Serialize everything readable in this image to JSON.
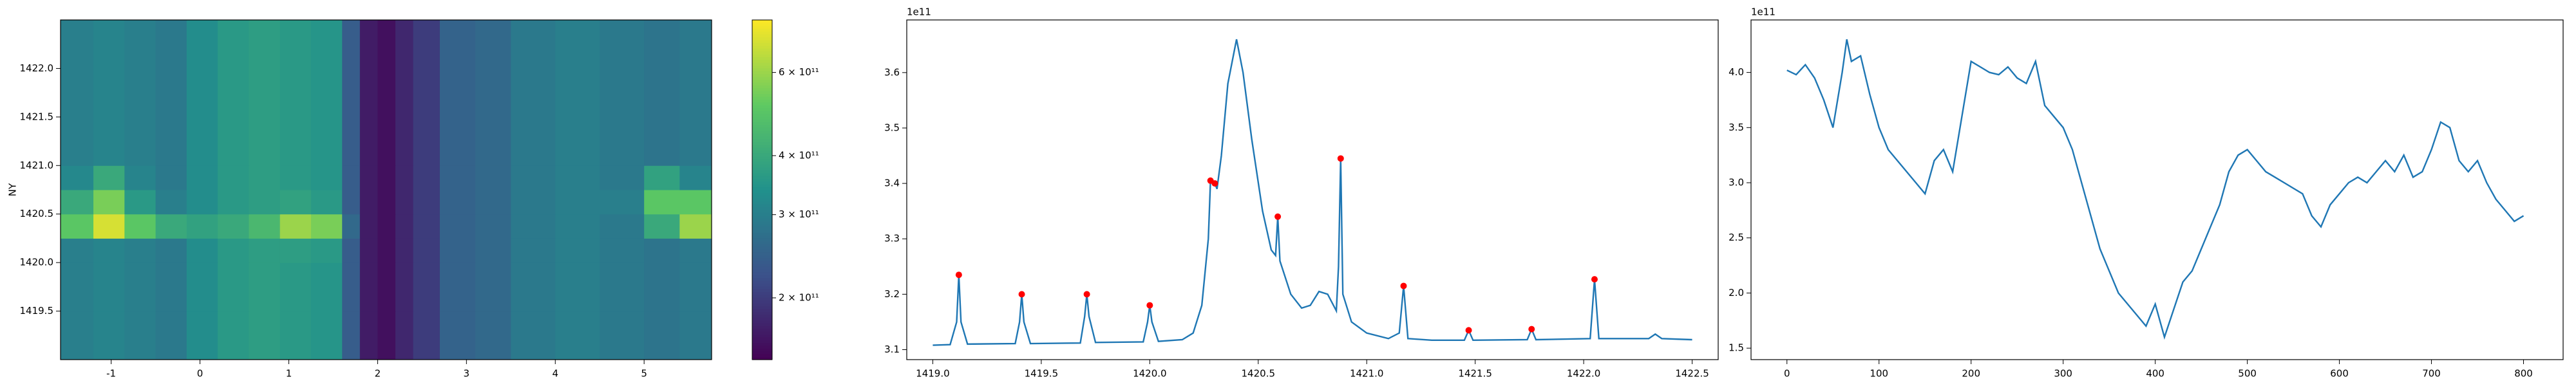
{
  "chart_data": [
    {
      "type": "heatmap",
      "ylabel": "NY",
      "colormap": "viridis",
      "xlim": [
        -1.57,
        5.76
      ],
      "ylim": [
        1419.0,
        1422.5
      ],
      "xticks": [
        -1,
        0,
        1,
        2,
        3,
        4,
        5
      ],
      "yticks": [
        1419.5,
        {
          "value": 1420,
          "label": "1420.0"
        },
        1420.5,
        {
          "value": 1421,
          "label": "1421.0"
        },
        1421.5,
        {
          "value": 1422,
          "label": "1422.0"
        }
      ],
      "x_edges": [
        -1.57,
        -1.2,
        -0.85,
        -0.5,
        -0.15,
        0.2,
        0.55,
        0.9,
        1.25,
        1.6,
        1.8,
        2.0,
        2.2,
        2.4,
        2.7,
        3.1,
        3.5,
        4.0,
        4.5,
        5.0,
        5.4,
        5.76
      ],
      "y_edges": [
        1419.0,
        1419.5,
        1420.0,
        1420.25,
        1420.5,
        1420.75,
        1421.0,
        1422.5
      ],
      "z": [
        [
          300000000000.0,
          310000000000.0,
          300000000000.0,
          290000000000.0,
          330000000000.0,
          360000000000.0,
          370000000000.0,
          360000000000.0,
          350000000000.0,
          240000000000.0,
          170000000000.0,
          160000000000.0,
          180000000000.0,
          200000000000.0,
          250000000000.0,
          260000000000.0,
          290000000000.0,
          300000000000.0,
          290000000000.0,
          280000000000.0,
          290000000000.0
        ],
        [
          300000000000.0,
          310000000000.0,
          300000000000.0,
          290000000000.0,
          330000000000.0,
          360000000000.0,
          370000000000.0,
          360000000000.0,
          350000000000.0,
          240000000000.0,
          170000000000.0,
          160000000000.0,
          180000000000.0,
          200000000000.0,
          250000000000.0,
          260000000000.0,
          290000000000.0,
          300000000000.0,
          290000000000.0,
          280000000000.0,
          290000000000.0
        ],
        [
          300000000000.0,
          310000000000.0,
          300000000000.0,
          290000000000.0,
          330000000000.0,
          360000000000.0,
          370000000000.0,
          370000000000.0,
          360000000000.0,
          240000000000.0,
          170000000000.0,
          160000000000.0,
          180000000000.0,
          200000000000.0,
          250000000000.0,
          260000000000.0,
          290000000000.0,
          300000000000.0,
          290000000000.0,
          280000000000.0,
          290000000000.0
        ],
        [
          500000000000.0,
          700000000000.0,
          500000000000.0,
          400000000000.0,
          380000000000.0,
          400000000000.0,
          450000000000.0,
          600000000000.0,
          550000000000.0,
          260000000000.0,
          170000000000.0,
          160000000000.0,
          180000000000.0,
          200000000000.0,
          250000000000.0,
          260000000000.0,
          290000000000.0,
          300000000000.0,
          290000000000.0,
          400000000000.0,
          600000000000.0
        ],
        [
          400000000000.0,
          550000000000.0,
          360000000000.0,
          300000000000.0,
          330000000000.0,
          360000000000.0,
          370000000000.0,
          380000000000.0,
          360000000000.0,
          240000000000.0,
          170000000000.0,
          160000000000.0,
          180000000000.0,
          200000000000.0,
          250000000000.0,
          260000000000.0,
          290000000000.0,
          300000000000.0,
          300000000000.0,
          500000000000.0,
          500000000000.0
        ],
        [
          320000000000.0,
          400000000000.0,
          310000000000.0,
          290000000000.0,
          330000000000.0,
          360000000000.0,
          370000000000.0,
          360000000000.0,
          350000000000.0,
          240000000000.0,
          170000000000.0,
          160000000000.0,
          180000000000.0,
          200000000000.0,
          250000000000.0,
          260000000000.0,
          290000000000.0,
          300000000000.0,
          290000000000.0,
          380000000000.0,
          310000000000.0
        ],
        [
          300000000000.0,
          310000000000.0,
          300000000000.0,
          290000000000.0,
          330000000000.0,
          360000000000.0,
          370000000000.0,
          360000000000.0,
          350000000000.0,
          240000000000.0,
          170000000000.0,
          160000000000.0,
          180000000000.0,
          200000000000.0,
          250000000000.0,
          260000000000.0,
          290000000000.0,
          300000000000.0,
          290000000000.0,
          280000000000.0,
          290000000000.0
        ]
      ],
      "colorbar": {
        "lim": [
          148000000000.0,
          775000000000.0
        ],
        "log": true,
        "ticks": [
          {
            "value": 200000000000.0,
            "label": "2 × 10¹¹"
          },
          {
            "value": 300000000000.0,
            "label": "3 × 10¹¹"
          },
          {
            "value": 400000000000.0,
            "label": "4 × 10¹¹"
          },
          {
            "value": 600000000000.0,
            "label": "6 × 10¹¹"
          }
        ]
      }
    },
    {
      "type": "line",
      "offset_text": "1e11",
      "xlim": [
        1418.88,
        1422.62
      ],
      "ylim": [
        3.082,
        3.695
      ],
      "xticks": [
        {
          "value": 1419,
          "label": "1419.0"
        },
        1419.5,
        {
          "value": 1420,
          "label": "1420.0"
        },
        1420.5,
        {
          "value": 1421,
          "label": "1421.0"
        },
        1421.5,
        {
          "value": 1422,
          "label": "1422.0"
        },
        1422.5
      ],
      "yticks": [
        3.1,
        3.2,
        3.3,
        3.4,
        3.5,
        3.6
      ],
      "series": [
        {
          "color": "#1f77b4",
          "x": [
            1419.0,
            1419.08,
            1419.11,
            1419.12,
            1419.13,
            1419.16,
            1419.38,
            1419.4,
            1419.41,
            1419.42,
            1419.45,
            1419.68,
            1419.7,
            1419.71,
            1419.72,
            1419.75,
            1419.97,
            1419.99,
            1420.0,
            1420.01,
            1420.04,
            1420.15,
            1420.2,
            1420.24,
            1420.27,
            1420.28,
            1420.3,
            1420.31,
            1420.33,
            1420.36,
            1420.4,
            1420.43,
            1420.47,
            1420.52,
            1420.56,
            1420.58,
            1420.59,
            1420.6,
            1420.65,
            1420.7,
            1420.74,
            1420.78,
            1420.82,
            1420.86,
            1420.87,
            1420.88,
            1420.89,
            1420.93,
            1421.0,
            1421.1,
            1421.15,
            1421.17,
            1421.19,
            1421.3,
            1421.45,
            1421.47,
            1421.49,
            1421.74,
            1421.76,
            1421.78,
            1422.03,
            1422.05,
            1422.07,
            1422.3,
            1422.33,
            1422.36,
            1422.5
          ],
          "values": [
            3.108,
            3.109,
            3.15,
            3.235,
            3.15,
            3.11,
            3.111,
            3.15,
            3.2,
            3.15,
            3.111,
            3.112,
            3.16,
            3.2,
            3.16,
            3.113,
            3.114,
            3.15,
            3.18,
            3.15,
            3.115,
            3.118,
            3.13,
            3.18,
            3.3,
            3.405,
            3.4,
            3.39,
            3.45,
            3.58,
            3.66,
            3.6,
            3.48,
            3.35,
            3.28,
            3.27,
            3.34,
            3.26,
            3.2,
            3.175,
            3.18,
            3.205,
            3.2,
            3.17,
            3.25,
            3.445,
            3.2,
            3.15,
            3.13,
            3.12,
            3.13,
            3.215,
            3.12,
            3.117,
            3.117,
            3.135,
            3.117,
            3.118,
            3.137,
            3.118,
            3.12,
            3.227,
            3.12,
            3.12,
            3.128,
            3.12,
            3.118
          ]
        }
      ],
      "peaks": {
        "color": "#ff0000",
        "x": [
          1419.12,
          1419.41,
          1419.71,
          1420.0,
          1420.28,
          1420.3,
          1420.59,
          1420.88,
          1421.17,
          1421.47,
          1421.76,
          1422.05
        ],
        "values": [
          3.235,
          3.2,
          3.2,
          3.18,
          3.405,
          3.4,
          3.34,
          3.445,
          3.215,
          3.135,
          3.137,
          3.227
        ]
      }
    },
    {
      "type": "line",
      "offset_text": "1e11",
      "xlim": [
        -39,
        843
      ],
      "ylim": [
        1.396,
        4.476
      ],
      "xticks": [
        0,
        100,
        200,
        300,
        400,
        500,
        600,
        700,
        800
      ],
      "yticks": [
        1.5,
        {
          "value": 2,
          "label": "2.0"
        },
        2.5,
        {
          "value": 3,
          "label": "3.0"
        },
        3.5,
        {
          "value": 4,
          "label": "4.0"
        }
      ],
      "series": [
        {
          "color": "#1f77b4",
          "x": [
            0,
            10,
            20,
            30,
            40,
            50,
            60,
            65,
            70,
            80,
            90,
            100,
            110,
            120,
            130,
            140,
            150,
            160,
            170,
            180,
            190,
            200,
            210,
            220,
            230,
            240,
            250,
            260,
            270,
            280,
            290,
            300,
            310,
            320,
            330,
            340,
            350,
            360,
            370,
            380,
            390,
            400,
            410,
            420,
            430,
            440,
            450,
            460,
            470,
            480,
            490,
            500,
            510,
            520,
            530,
            540,
            550,
            560,
            570,
            580,
            590,
            600,
            610,
            620,
            630,
            640,
            650,
            660,
            670,
            680,
            690,
            700,
            710,
            720,
            730,
            740,
            750,
            760,
            770,
            780,
            790,
            800
          ],
          "values": [
            4.02,
            3.98,
            4.07,
            3.95,
            3.75,
            3.5,
            4.0,
            4.3,
            4.1,
            4.15,
            3.8,
            3.5,
            3.3,
            3.2,
            3.1,
            3.0,
            2.9,
            3.2,
            3.3,
            3.1,
            3.6,
            4.1,
            4.05,
            4.0,
            3.98,
            4.05,
            3.95,
            3.9,
            4.1,
            3.7,
            3.6,
            3.5,
            3.3,
            3.0,
            2.7,
            2.4,
            2.2,
            2.0,
            1.9,
            1.8,
            1.7,
            1.9,
            1.6,
            1.85,
            2.1,
            2.2,
            2.4,
            2.6,
            2.8,
            3.1,
            3.25,
            3.3,
            3.2,
            3.1,
            3.05,
            3.0,
            2.95,
            2.9,
            2.7,
            2.6,
            2.8,
            2.9,
            3.0,
            3.05,
            3.0,
            3.1,
            3.2,
            3.1,
            3.25,
            3.05,
            3.1,
            3.3,
            3.55,
            3.5,
            3.2,
            3.1,
            3.2,
            3.0,
            2.85,
            2.75,
            2.65,
            2.7
          ]
        }
      ]
    }
  ]
}
